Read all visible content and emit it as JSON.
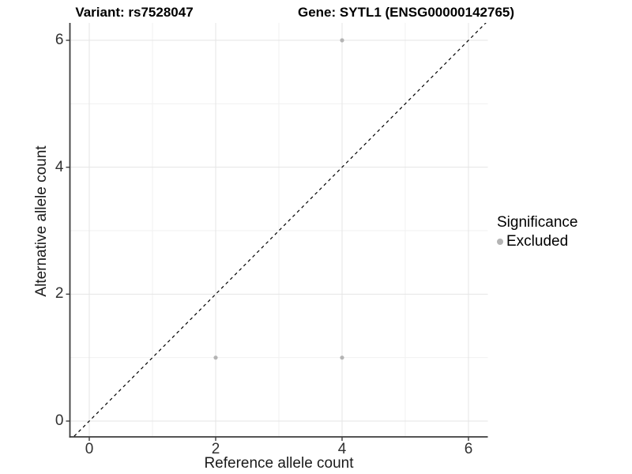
{
  "chart_data": {
    "type": "scatter",
    "title_left": "Variant: rs7528047",
    "title_right": "Gene: SYTL1 (ENSG00000142765)",
    "xlabel": "Reference allele count",
    "ylabel": "Alternative allele count",
    "xticks": [
      0,
      2,
      4,
      6
    ],
    "yticks": [
      0,
      2,
      4,
      6
    ],
    "xminor": [
      1,
      3,
      5
    ],
    "yminor": [
      1,
      3,
      5
    ],
    "xlim": [
      -0.31,
      6.61
    ],
    "ylim": [
      -0.25,
      6.52
    ],
    "grid": true,
    "points": [
      {
        "x": 2,
        "y": 1,
        "significance": "Excluded"
      },
      {
        "x": 4,
        "y": 1,
        "significance": "Excluded"
      },
      {
        "x": 4,
        "y": 6,
        "significance": "Excluded"
      }
    ],
    "identity_line": {
      "style": "dashed",
      "slope": 1,
      "intercept": 0
    },
    "legend": {
      "position": "right",
      "title": "Significance",
      "entries": [
        {
          "label": "Excluded",
          "color": "#b4b4b4"
        }
      ]
    },
    "colors": {
      "background": "#ffffff",
      "grid_major": "#e4e4e4",
      "grid_minor": "#f1f1f1",
      "axis_line": "#3c3c3c",
      "tick_mark": "#3c3c3c",
      "dashed_line": "#000000",
      "point_excluded": "#b4b4b4"
    }
  }
}
